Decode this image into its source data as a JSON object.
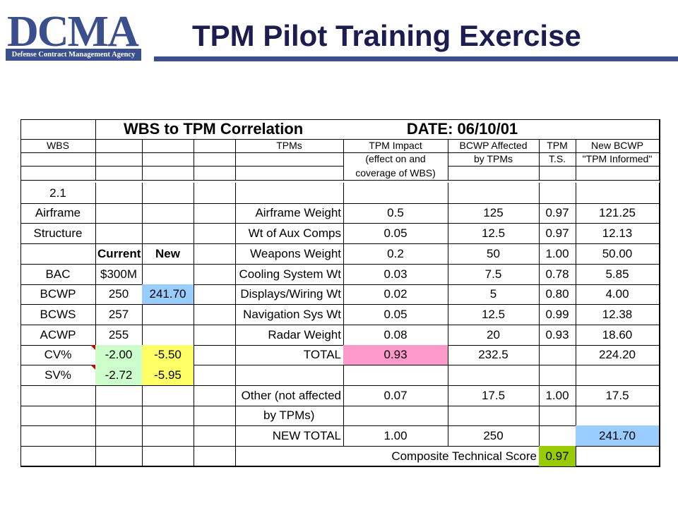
{
  "header": {
    "logo_text": "DCMA",
    "logo_subtitle": "Defense Contract Management Agency",
    "title": "TPM Pilot Training Exercise"
  },
  "sheet": {
    "banner": "WBS to TPM Correlation",
    "date_label": "DATE:  06/10/01",
    "col_headers": {
      "wbs": "WBS",
      "tpms": "TPMs",
      "impact_1": "TPM Impact",
      "impact_2": "(effect on and",
      "impact_3": "coverage of WBS)",
      "bcwp_1": "BCWP Affected",
      "bcwp_2": "by TPMs",
      "ts_1": "TPM",
      "ts_2": "T.S.",
      "new_1": "New BCWP",
      "new_2": "\"TPM Informed\""
    },
    "wbs_id": "2.1",
    "wbs_items": {
      "airframe": "Airframe",
      "structure": "Structure",
      "current_label": "Current",
      "new_label": "New",
      "bac": "BAC",
      "bac_current": "$300M",
      "bcwp": "BCWP",
      "bcwp_current": "250",
      "bcwp_new": "241.70",
      "bcws": "BCWS",
      "bcws_current": "257",
      "acwp": "ACWP",
      "acwp_current": "255",
      "cv": "CV%",
      "cv_current": "-2.00",
      "cv_new": "-5.50",
      "sv": "SV%",
      "sv_current": "-2.72",
      "sv_new": "-5.95"
    },
    "tpm_rows": [
      {
        "name": "Airframe Weight",
        "impact": "0.5",
        "bcwp": "125",
        "ts": "0.97",
        "new": "121.25"
      },
      {
        "name": "Wt of Aux Comps",
        "impact": "0.05",
        "bcwp": "12.5",
        "ts": "0.97",
        "new": "12.13"
      },
      {
        "name": "Weapons Weight",
        "impact": "0.2",
        "bcwp": "50",
        "ts": "1.00",
        "new": "50.00"
      },
      {
        "name": "Cooling System Wt",
        "impact": "0.03",
        "bcwp": "7.5",
        "ts": "0.78",
        "new": "5.85"
      },
      {
        "name": "Displays/Wiring Wt",
        "impact": "0.02",
        "bcwp": "5",
        "ts": "0.80",
        "new": "4.00"
      },
      {
        "name": "Navigation Sys Wt",
        "impact": "0.05",
        "bcwp": "12.5",
        "ts": "0.99",
        "new": "12.38"
      },
      {
        "name": "Radar Weight",
        "impact": "0.08",
        "bcwp": "20",
        "ts": "0.93",
        "new": "18.60"
      }
    ],
    "total": {
      "label": "TOTAL",
      "impact": "0.93",
      "bcwp": "232.5",
      "new": "224.20"
    },
    "other": {
      "label_1": "Other (not affected",
      "label_2": "by TPMs)",
      "impact": "0.07",
      "bcwp": "17.5",
      "ts": "1.00",
      "new": "17.5"
    },
    "new_total": {
      "label": "NEW TOTAL",
      "impact": "1.00",
      "bcwp": "250",
      "new": "241.70"
    },
    "composite": {
      "label": "Composite Technical Score",
      "value": "0.97"
    }
  },
  "colors": {
    "brand": "#3b4f8c",
    "title": "#1c1c50",
    "blue_cell": "#99ccff",
    "green_cell": "#ccffcc",
    "yellow_cell": "#ffff66",
    "pink_cell": "#ff99cc",
    "lime_cell": "#99cc00"
  }
}
